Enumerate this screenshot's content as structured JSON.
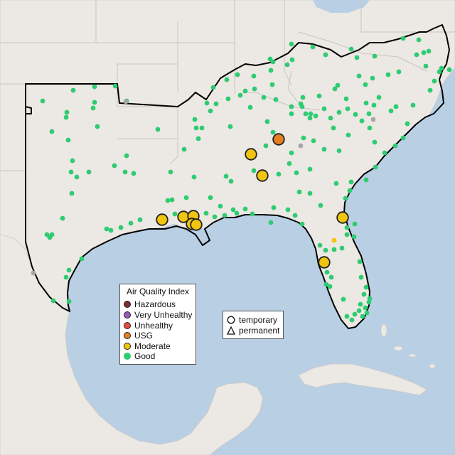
{
  "legend": {
    "title": "Air Quality Index",
    "items": [
      {
        "label": "Hazardous",
        "color": "#7e2b2b"
      },
      {
        "label": "Very Unhealthy",
        "color": "#9b59b6"
      },
      {
        "label": "Unhealthy",
        "color": "#e74c3c"
      },
      {
        "label": "USG",
        "color": "#e67e22"
      },
      {
        "label": "Moderate",
        "color": "#f1c40f"
      },
      {
        "label": "Good",
        "color": "#2ecc71"
      }
    ]
  },
  "shape_legend": {
    "temporary": "temporary",
    "permanent": "permanent"
  },
  "colors": {
    "water": "#b8cfe4",
    "land": "#ece8e4",
    "region_outline": "#000000",
    "gray_site": "#a6a6a6",
    "small_yellow_site": "#f1c40f"
  }
}
